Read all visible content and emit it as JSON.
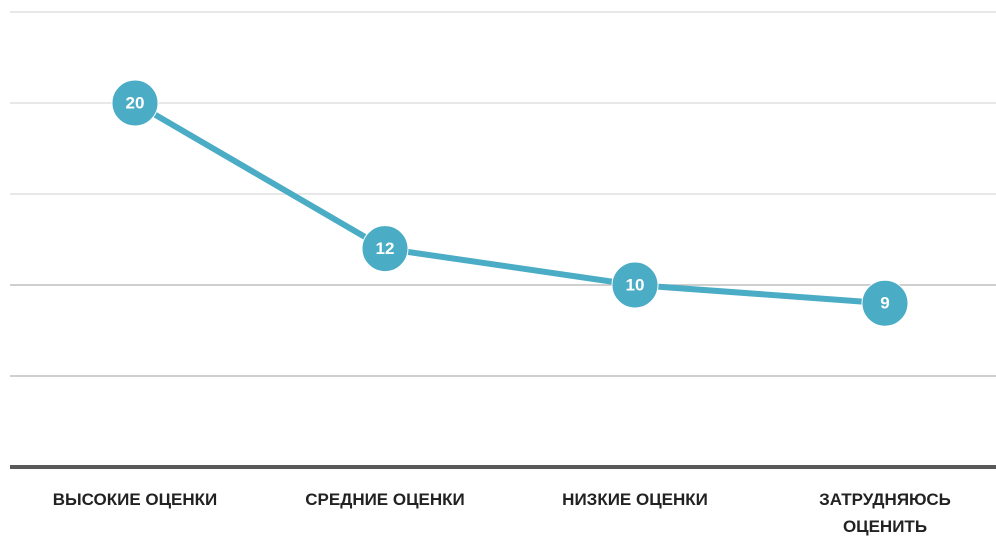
{
  "chart_data": {
    "type": "line",
    "categories": [
      "ВЫСОКИЕ ОЦЕНКИ",
      "СРЕДНИЕ ОЦЕНКИ",
      "НИЗКИЕ ОЦЕНКИ",
      "ЗАТРУДНЯЮСЬ ОЦЕНИТЬ"
    ],
    "series": [
      {
        "color": "#4bacc6",
        "values": [
          20,
          12,
          10,
          9
        ]
      }
    ],
    "ylim": [
      0,
      25
    ],
    "yticks": [
      0,
      5,
      10,
      15,
      20,
      25
    ],
    "grid": true
  }
}
